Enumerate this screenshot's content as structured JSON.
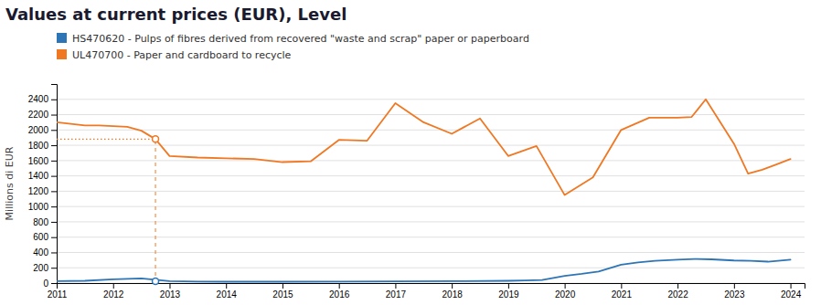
{
  "chart_data": {
    "type": "line",
    "title": "Values at current prices (EUR), Level",
    "y_label": "Millions di EUR",
    "title_color": "#1a1a2e",
    "background_color": "#ffffff",
    "legend": "upper left",
    "grid": true,
    "series": [
      {
        "name": "HS470620 - Pulps of fibres derived from recovered \"waste and scrap\" paper or paperboard",
        "color": "#2e75b6",
        "x": [
          2011,
          2011.5,
          2012,
          2012.5,
          2013,
          2013.5,
          2014,
          2015,
          2016,
          2017,
          2018,
          2019,
          2019.3,
          2019.6,
          2020,
          2020.3,
          2020.6,
          2021,
          2021.3,
          2021.6,
          2022,
          2022.3,
          2022.6,
          2023,
          2023.3,
          2023.6,
          2024
        ],
        "values": [
          25,
          30,
          50,
          60,
          25,
          20,
          18,
          18,
          20,
          22,
          25,
          30,
          35,
          40,
          95,
          120,
          150,
          240,
          270,
          290,
          305,
          315,
          310,
          295,
          290,
          280,
          305
        ]
      },
      {
        "name": "UL470700 - Paper and cardboard to recycle",
        "color": "#f07823",
        "x": [
          2011,
          2011.25,
          2011.5,
          2011.75,
          2012,
          2012.25,
          2012.5,
          2012.75,
          2013,
          2013.5,
          2014,
          2014.5,
          2015,
          2015.5,
          2016,
          2016.5,
          2017,
          2017.5,
          2018,
          2018.5,
          2019,
          2019.5,
          2020,
          2020.5,
          2021,
          2021.5,
          2022,
          2022.25,
          2022.5,
          2023,
          2023.25,
          2023.5,
          2023.75,
          2024
        ],
        "values": [
          2100,
          2080,
          2060,
          2060,
          2050,
          2040,
          1990,
          1880,
          1660,
          1640,
          1630,
          1620,
          1580,
          1590,
          1870,
          1860,
          2350,
          2100,
          1950,
          2150,
          1660,
          1790,
          1150,
          1380,
          2000,
          2160,
          2160,
          2170,
          2400,
          1820,
          1430,
          1480,
          1550,
          1620
        ]
      }
    ],
    "annotation": {
      "x": 2012.75,
      "color": "#f07823",
      "points": [
        {
          "y": 1880,
          "color": "#f07823"
        },
        {
          "y": 25,
          "color": "#2e75b6"
        }
      ]
    },
    "xlim": [
      2011,
      2024.25
    ],
    "ylim": [
      0,
      2600
    ],
    "xticks": [
      2011,
      2012,
      2013,
      2014,
      2015,
      2016,
      2017,
      2018,
      2019,
      2020,
      2021,
      2022,
      2023,
      2024
    ],
    "yticks": [
      0,
      200,
      400,
      600,
      800,
      1000,
      1200,
      1400,
      1600,
      1800,
      2000,
      2200,
      2400
    ]
  }
}
